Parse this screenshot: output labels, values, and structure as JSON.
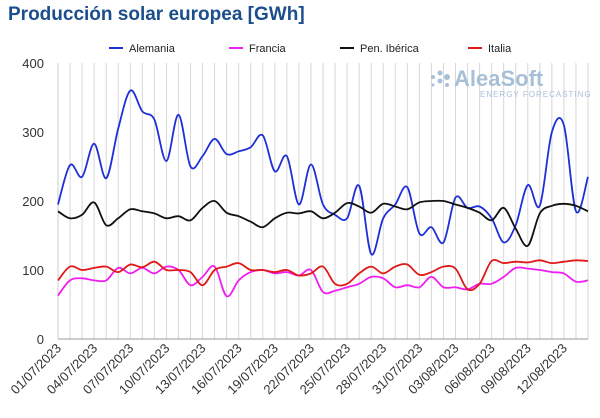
{
  "chart_data": {
    "type": "line",
    "title": "Producción solar europea [GWh]",
    "xlabel": "",
    "ylabel": "",
    "ylim": [
      0,
      400
    ],
    "yticks": [
      0,
      100,
      200,
      300,
      400
    ],
    "grid": "vertical",
    "legend_position": "top",
    "x_tick_labels": [
      "01/07/2023",
      "04/07/2023",
      "07/07/2023",
      "10/07/2023",
      "13/07/2023",
      "16/07/2023",
      "19/07/2023",
      "22/07/2023",
      "25/07/2023",
      "28/07/2023",
      "31/07/2023",
      "03/08/2023",
      "06/08/2023",
      "09/08/2023",
      "12/08/2023"
    ],
    "series": [
      {
        "name": "Alemania",
        "color": "#1f2fd6",
        "values": [
          195,
          252,
          235,
          283,
          233,
          305,
          360,
          330,
          318,
          258,
          325,
          250,
          265,
          290,
          268,
          272,
          278,
          295,
          243,
          265,
          195,
          253,
          195,
          180,
          175,
          222,
          123,
          175,
          195,
          220,
          153,
          162,
          140,
          205,
          190,
          192,
          175,
          140,
          165,
          223,
          193,
          300,
          310,
          185,
          235
        ]
      },
      {
        "name": "Francia",
        "color": "#f01ef0",
        "values": [
          63,
          85,
          88,
          85,
          85,
          103,
          95,
          103,
          95,
          105,
          100,
          78,
          90,
          105,
          62,
          85,
          97,
          100,
          95,
          97,
          92,
          100,
          68,
          70,
          75,
          80,
          90,
          88,
          75,
          78,
          75,
          90,
          75,
          75,
          72,
          80,
          80,
          90,
          103,
          102,
          100,
          97,
          95,
          83,
          85
        ]
      },
      {
        "name": "Pen. Ibérica",
        "color": "#111111",
        "values": [
          185,
          175,
          180,
          198,
          165,
          175,
          188,
          185,
          182,
          175,
          178,
          172,
          190,
          200,
          183,
          178,
          170,
          162,
          175,
          183,
          182,
          185,
          175,
          183,
          197,
          192,
          183,
          196,
          192,
          188,
          198,
          200,
          200,
          195,
          190,
          183,
          172,
          190,
          160,
          135,
          182,
          193,
          196,
          193,
          185
        ]
      },
      {
        "name": "Italia",
        "color": "#e01818",
        "values": [
          85,
          105,
          100,
          103,
          105,
          97,
          108,
          104,
          112,
          100,
          100,
          97,
          78,
          100,
          105,
          110,
          100,
          100,
          97,
          100,
          92,
          95,
          105,
          80,
          80,
          95,
          105,
          95,
          105,
          108,
          93,
          97,
          105,
          102,
          72,
          80,
          113,
          110,
          112,
          111,
          114,
          110,
          112,
          114,
          113
        ]
      }
    ]
  },
  "watermark": {
    "brand": "AleaSoft",
    "tagline": "ENERGY FORECASTING"
  }
}
